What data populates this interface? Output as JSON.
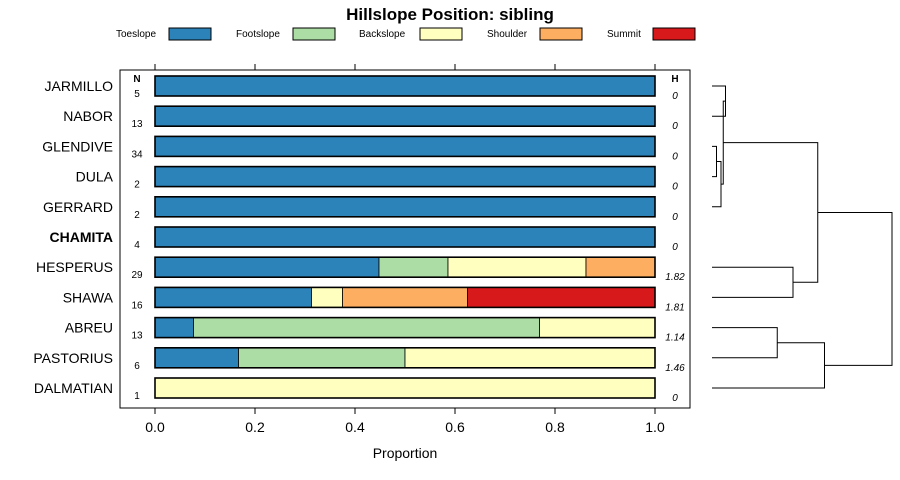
{
  "chart_data": {
    "type": "bar",
    "stacked": true,
    "orientation": "horizontal",
    "title": "Hillslope Position: sibling",
    "xlabel": "Proportion",
    "xlim": [
      0,
      1
    ],
    "xticks": [
      "0.0",
      "0.2",
      "0.4",
      "0.6",
      "0.8",
      "1.0"
    ],
    "n_header": "N",
    "h_header": "H",
    "highlighted": "CHAMITA",
    "categories": [
      "JARMILLO",
      "NABOR",
      "GLENDIVE",
      "DULA",
      "GERRARD",
      "CHAMITA",
      "HESPERUS",
      "SHAWA",
      "ABREU",
      "PASTORIUS",
      "DALMATIAN"
    ],
    "n": [
      "5",
      "13",
      "34",
      "2",
      "2",
      "4",
      "29",
      "16",
      "13",
      "6",
      "1"
    ],
    "h": [
      "0",
      "0",
      "0",
      "0",
      "0",
      "0",
      "1.82",
      "1.81",
      "1.14",
      "1.46",
      "0"
    ],
    "series": [
      {
        "name": "Toeslope",
        "color": "#2b83ba",
        "values": [
          1,
          1,
          1,
          1,
          1,
          1,
          0.448,
          0.313,
          0.077,
          0.167,
          0
        ]
      },
      {
        "name": "Footslope",
        "color": "#abdda4",
        "values": [
          0,
          0,
          0,
          0,
          0,
          0,
          0.138,
          0,
          0.692,
          0.333,
          0
        ]
      },
      {
        "name": "Backslope",
        "color": "#ffffbf",
        "values": [
          0,
          0,
          0,
          0,
          0,
          0,
          0.276,
          0.062,
          0.231,
          0.5,
          1
        ]
      },
      {
        "name": "Shoulder",
        "color": "#fdae61",
        "values": [
          0,
          0,
          0,
          0,
          0,
          0,
          0.138,
          0.25,
          0,
          0,
          0
        ]
      },
      {
        "name": "Summit",
        "color": "#d7191c",
        "values": [
          0,
          0,
          0,
          0,
          0,
          0,
          0,
          0.375,
          0,
          0,
          0
        ]
      }
    ],
    "dendrogram": {
      "merges": [
        [
          0,
          1,
          0.06
        ],
        [
          2,
          3,
          0.02
        ],
        [
          -2,
          4,
          0.04
        ],
        [
          -1,
          -3,
          0.05
        ],
        [
          6,
          7,
          0.36
        ],
        [
          8,
          9,
          0.29
        ],
        [
          -6,
          10,
          0.5
        ],
        [
          -4,
          -5,
          0.47
        ],
        [
          -8,
          -7,
          0.8
        ]
      ]
    }
  }
}
